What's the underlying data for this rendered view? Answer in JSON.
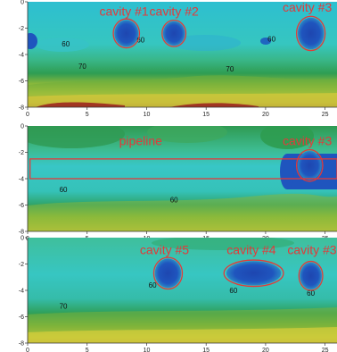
{
  "chart_data": [
    {
      "type": "heatmap",
      "panel": "top",
      "x_ticks": [
        0,
        5,
        10,
        15,
        20,
        25
      ],
      "y_ticks": [
        0,
        -2,
        -4,
        -6,
        -8
      ],
      "xlim": [
        0,
        26
      ],
      "ylim": [
        -8,
        0
      ],
      "contour_labels": [
        {
          "text": "60",
          "x": 3.2,
          "y": -3.4
        },
        {
          "text": "60",
          "x": 9.5,
          "y": -3.1
        },
        {
          "text": "60",
          "x": 20.5,
          "y": -3.0
        },
        {
          "text": "70",
          "x": 4.6,
          "y": -5.1
        },
        {
          "text": "70",
          "x": 17.0,
          "y": -5.3
        }
      ],
      "annotations": [
        {
          "label": "cavity #1",
          "label_x": 8.1,
          "label_y": -0.8,
          "ellipse": {
            "cx": 8.3,
            "cy": -2.4,
            "rx": 1.1,
            "ry": 1.1
          }
        },
        {
          "label": "cavity #2",
          "label_x": 12.3,
          "label_y": -0.8,
          "ellipse": {
            "cx": 12.3,
            "cy": -2.4,
            "rx": 1.0,
            "ry": 1.0
          }
        },
        {
          "label": "cavity #3",
          "label_x": 23.5,
          "label_y": -0.5,
          "ellipse": {
            "cx": 23.8,
            "cy": -2.4,
            "rx": 1.2,
            "ry": 1.3
          }
        }
      ]
    },
    {
      "type": "heatmap",
      "panel": "middle",
      "x_ticks": [
        0,
        5,
        10,
        15,
        20,
        25
      ],
      "y_ticks": [
        0,
        -2,
        -4,
        -6,
        -8
      ],
      "xlim": [
        0,
        26
      ],
      "ylim": [
        -8,
        0
      ],
      "contour_labels": [
        {
          "text": "60",
          "x": 3.0,
          "y": -5.0
        },
        {
          "text": "60",
          "x": 12.3,
          "y": -5.8
        }
      ],
      "annotations": [
        {
          "label": "pipeline",
          "label_x": 9.5,
          "label_y": -1.2,
          "rect": {
            "x0": 0.2,
            "x1": 26.0,
            "y0": -2.5,
            "y1": -4.0
          }
        },
        {
          "label": "cavity #3",
          "label_x": 23.5,
          "label_y": -1.2,
          "ellipse": {
            "cx": 23.7,
            "cy": -3.0,
            "rx": 1.1,
            "ry": 1.2
          }
        }
      ]
    },
    {
      "type": "heatmap",
      "panel": "bottom",
      "x_ticks": [
        0,
        5,
        10,
        15,
        20,
        25
      ],
      "y_ticks": [
        0,
        -2,
        -4,
        -6,
        -8
      ],
      "xlim": [
        0,
        26
      ],
      "ylim": [
        -8,
        0
      ],
      "contour_labels": [
        {
          "text": "60",
          "x": 10.5,
          "y": -3.8
        },
        {
          "text": "60",
          "x": 17.3,
          "y": -4.2
        },
        {
          "text": "60",
          "x": 23.8,
          "y": -4.4
        },
        {
          "text": "70",
          "x": 3.0,
          "y": -5.4
        }
      ],
      "annotations": [
        {
          "label": "cavity #5",
          "label_x": 11.5,
          "label_y": -1.0,
          "ellipse": {
            "cx": 11.8,
            "cy": -2.7,
            "rx": 1.2,
            "ry": 1.2
          }
        },
        {
          "label": "cavity #4",
          "label_x": 18.8,
          "label_y": -1.0,
          "ellipse": {
            "cx": 19.0,
            "cy": -2.7,
            "rx": 2.5,
            "ry": 1.0
          }
        },
        {
          "label": "cavity #3",
          "label_x": 23.9,
          "label_y": -1.0,
          "ellipse": {
            "cx": 23.8,
            "cy": -2.9,
            "rx": 1.0,
            "ry": 1.1
          }
        }
      ]
    }
  ],
  "colors": {
    "annotation": "#e23a3a",
    "cavity_core": "#1f4fb8",
    "scale": [
      "#1f4fb8",
      "#1d7fc6",
      "#2eb5c8",
      "#37c4b8",
      "#2ea86b",
      "#3f9a44",
      "#8ab83a",
      "#d8d43a",
      "#e1a23a",
      "#9a1f1f"
    ]
  }
}
